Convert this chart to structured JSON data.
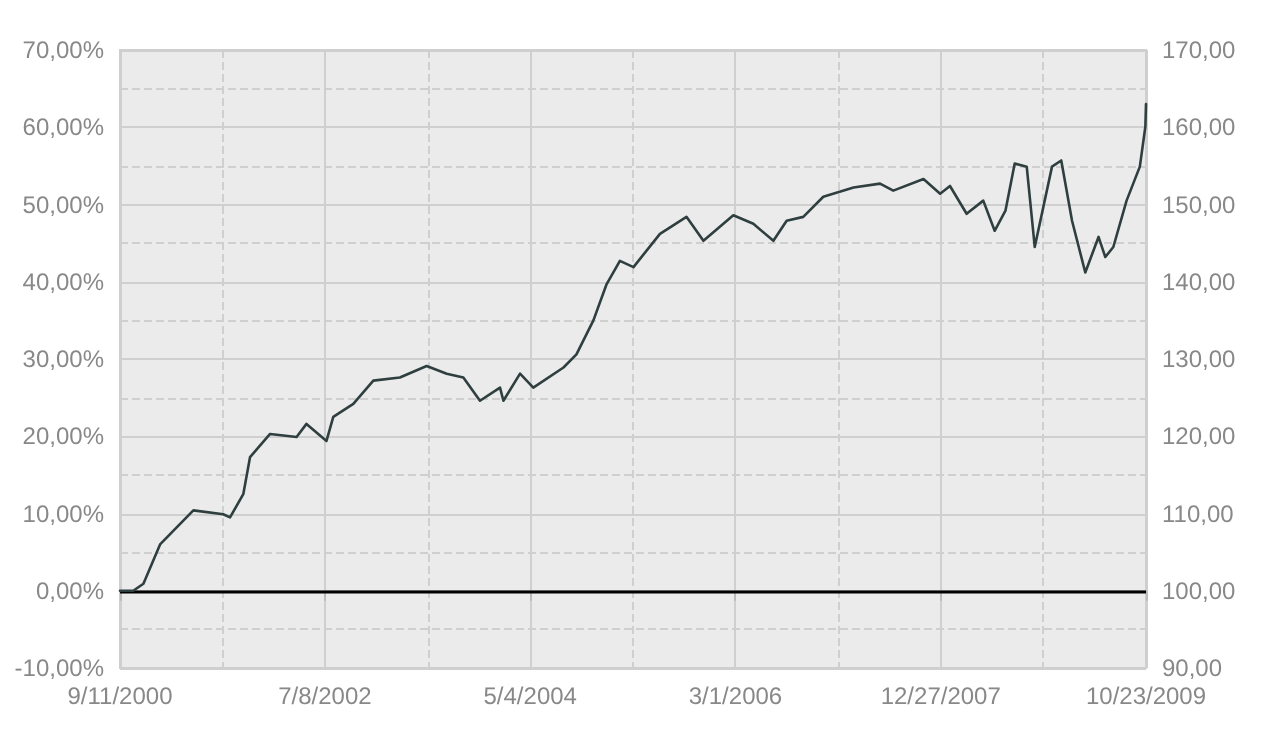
{
  "chart_data": {
    "type": "line",
    "x": [
      "2000-09-11",
      "2000-10-24",
      "2000-11-26",
      "2001-01-19",
      "2001-03-14",
      "2001-05-07",
      "2001-08-12",
      "2001-09-03",
      "2001-10-16",
      "2001-11-07",
      "2002-01-11",
      "2002-04-07",
      "2002-05-09",
      "2002-07-13",
      "2002-08-04",
      "2002-10-08",
      "2002-12-12",
      "2003-03-08",
      "2003-06-03",
      "2003-08-07",
      "2003-09-30",
      "2003-11-23",
      "2004-01-27",
      "2004-02-07",
      "2004-04-01",
      "2004-05-14",
      "2004-08-20",
      "2004-10-01",
      "2004-11-25",
      "2005-01-07",
      "2005-02-19",
      "2005-04-04",
      "2005-06-29",
      "2005-09-23",
      "2005-11-17",
      "2006-02-22",
      "2006-04-28",
      "2006-07-02",
      "2006-08-14",
      "2006-10-07",
      "2006-12-11",
      "2007-03-19",
      "2007-06-13",
      "2007-07-26",
      "2007-11-01",
      "2007-12-25",
      "2008-01-26",
      "2008-03-20",
      "2008-05-13",
      "2008-06-19",
      "2008-07-24",
      "2008-08-23",
      "2008-10-01",
      "2008-10-27",
      "2008-12-22",
      "2009-01-21",
      "2009-02-25",
      "2009-04-09",
      "2009-05-22",
      "2009-06-13",
      "2009-07-09",
      "2009-08-21",
      "2009-10-03",
      "2009-10-21",
      "2009-10-23"
    ],
    "series": [
      {
        "color": "#2f3f3f",
        "values": [
          0,
          0,
          0.9,
          6.0,
          8.2,
          10.4,
          9.9,
          9.5,
          12.5,
          17.3,
          20.3,
          19.9,
          21.6,
          19.4,
          22.5,
          24.2,
          27.2,
          27.6,
          29.1,
          28.1,
          27.6,
          24.6,
          26.3,
          24.6,
          28.1,
          26.3,
          28.9,
          30.6,
          35.0,
          39.7,
          42.7,
          41.9,
          46.2,
          48.4,
          45.3,
          48.6,
          47.5,
          45.3,
          47.9,
          48.4,
          51.0,
          52.2,
          52.7,
          51.8,
          53.3,
          51.4,
          52.4,
          48.8,
          50.5,
          46.6,
          49.2,
          55.3,
          54.9,
          44.5,
          54.9,
          55.7,
          47.9,
          41.2,
          45.8,
          43.2,
          44.5,
          50.5,
          54.9,
          60.1,
          63.0
        ]
      }
    ],
    "xlim": [
      "2000-09-11",
      "2009-10-23"
    ],
    "xticks": [
      {
        "value": "2000-09-11",
        "label": "9/11/2000"
      },
      {
        "value": "2002-07-08",
        "label": "7/8/2002"
      },
      {
        "value": "2004-05-04",
        "label": "5/4/2004"
      },
      {
        "value": "2006-03-01",
        "label": "3/1/2006"
      },
      {
        "value": "2007-12-27",
        "label": "12/27/2007"
      },
      {
        "value": "2009-10-23",
        "label": "10/23/2009"
      }
    ],
    "ylim": [
      -10,
      70
    ],
    "yticks": [
      {
        "value": -10,
        "label": "-10,00%"
      },
      {
        "value": 0,
        "label": "0,00%"
      },
      {
        "value": 10,
        "label": "10,00%"
      },
      {
        "value": 20,
        "label": "20,00%"
      },
      {
        "value": 30,
        "label": "30,00%"
      },
      {
        "value": 40,
        "label": "40,00%"
      },
      {
        "value": 50,
        "label": "50,00%"
      },
      {
        "value": 60,
        "label": "60,00%"
      },
      {
        "value": 70,
        "label": "70,00%"
      }
    ],
    "y2lim": [
      90,
      170
    ],
    "y2ticks": [
      {
        "value": 90,
        "label": "90,00"
      },
      {
        "value": 100,
        "label": "100,00"
      },
      {
        "value": 110,
        "label": "110,00"
      },
      {
        "value": 120,
        "label": "120,00"
      },
      {
        "value": 130,
        "label": "130,00"
      },
      {
        "value": 140,
        "label": "140,00"
      },
      {
        "value": 150,
        "label": "150,00"
      },
      {
        "value": 160,
        "label": "160,00"
      },
      {
        "value": 170,
        "label": "170,00"
      }
    ],
    "ref_lines": [
      {
        "axis": "y",
        "value": 0,
        "color": "#000000"
      }
    ],
    "grid": true,
    "line_style": "solid"
  }
}
